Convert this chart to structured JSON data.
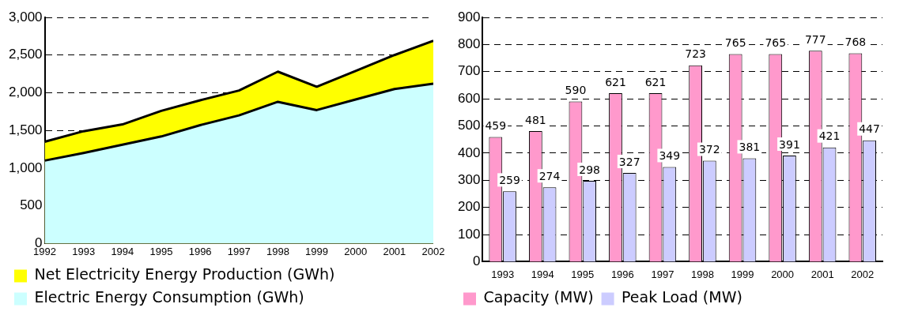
{
  "chart_data": [
    {
      "type": "area",
      "x": [
        1992,
        1993,
        1994,
        1995,
        1996,
        1997,
        1998,
        1999,
        2000,
        2001,
        2002
      ],
      "series": [
        {
          "name": "Net Electricity Energy Production (GWh)",
          "color": "#ffff00",
          "values": [
            1350,
            1490,
            1580,
            1760,
            1900,
            2030,
            2280,
            2080,
            2290,
            2500,
            2690
          ]
        },
        {
          "name": "Electric Energy Consumption (GWh)",
          "color": "#ccffff",
          "values": [
            1100,
            1200,
            1310,
            1420,
            1570,
            1700,
            1880,
            1770,
            1910,
            2050,
            2120
          ]
        }
      ],
      "xlim": [
        1992,
        2002
      ],
      "xticks": [
        1992,
        1993,
        1994,
        1995,
        1996,
        1997,
        1998,
        1999,
        2000,
        2001,
        2002
      ],
      "ylim": [
        0,
        3000
      ],
      "yticks": [
        0,
        {
          "value": 500,
          "label": "500"
        },
        {
          "value": 1000,
          "label": "1,000"
        },
        {
          "value": 1500,
          "label": "1,500"
        },
        {
          "value": 2000,
          "label": "2,000"
        },
        {
          "value": 2500,
          "label": "2,500"
        },
        {
          "value": 3000,
          "label": "3,000"
        }
      ],
      "grid": "y",
      "line_style": "dashed",
      "legend": "bottom"
    },
    {
      "type": "bar",
      "categories": [
        "1993",
        "1994",
        "1995",
        "1996",
        "1997",
        "1998",
        "1999",
        "2000",
        "2001",
        "2002"
      ],
      "series": [
        {
          "name": "Capacity (MW)",
          "color": "#ff99cc",
          "values": [
            459,
            481,
            590,
            621,
            621,
            723,
            765,
            765,
            777,
            768
          ]
        },
        {
          "name": "Peak Load (MW)",
          "color": "#ccccff",
          "values": [
            259,
            274,
            298,
            327,
            349,
            372,
            381,
            391,
            421,
            447
          ]
        }
      ],
      "ylim": [
        0,
        900
      ],
      "yticks": [
        0,
        100,
        200,
        300,
        400,
        500,
        600,
        700,
        800,
        900
      ],
      "grid": "y",
      "line_style": "dashed",
      "legend": "bottom",
      "data_labels": true
    }
  ]
}
